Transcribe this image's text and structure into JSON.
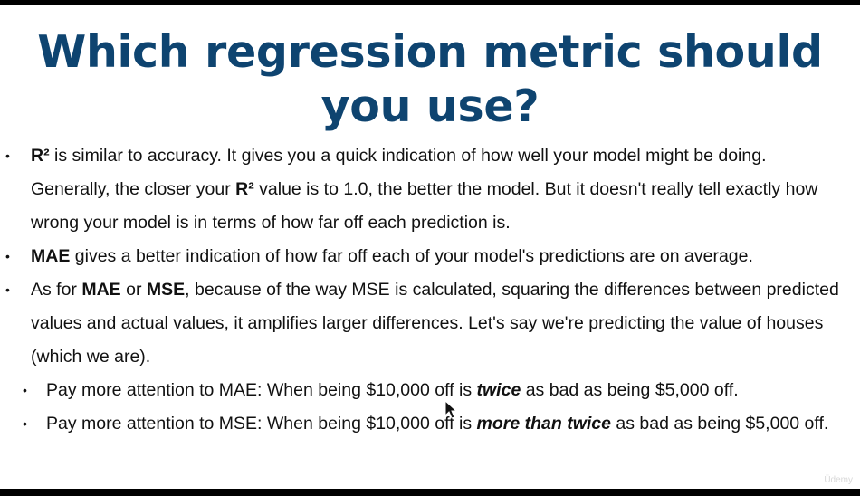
{
  "title": "Which regression metric should you use?",
  "bullets": [
    {
      "parts": [
        {
          "t": "R²",
          "b": true
        },
        {
          "t": " is similar to accuracy. It gives you a quick indication of how well your model might be doing. Generally, the closer your "
        },
        {
          "t": "R²",
          "b": true
        },
        {
          "t": " value is to 1.0, the better the model. But it doesn't really tell exactly how wrong your model is in terms of how far off each prediction is."
        }
      ]
    },
    {
      "parts": [
        {
          "t": "MAE",
          "b": true
        },
        {
          "t": " gives a better indication of how far off each of your model's predictions are on average."
        }
      ]
    },
    {
      "parts": [
        {
          "t": "As for "
        },
        {
          "t": "MAE",
          "b": true
        },
        {
          "t": " or "
        },
        {
          "t": "MSE",
          "b": true
        },
        {
          "t": ", because of the way MSE is calculated, squaring the differences between predicted values and actual values, it amplifies larger differences. Let's say we're predicting the value of houses (which we are)."
        }
      ]
    }
  ],
  "sub_bullets": [
    {
      "parts": [
        {
          "t": "Pay more attention to MAE: When being $10,000 off is "
        },
        {
          "t": "twice",
          "b": true,
          "i": true
        },
        {
          "t": " as bad as being $5,000 off."
        }
      ]
    },
    {
      "parts": [
        {
          "t": "Pay more attention to MSE: When being $10,000 off is "
        },
        {
          "t": "more than twice",
          "b": true,
          "i": true
        },
        {
          "t": " as bad as being $5,000 off."
        }
      ]
    }
  ],
  "bullet_glyph": "•",
  "watermark": "Üdemy",
  "colors": {
    "title": "#0e4470",
    "background": "#ffffff",
    "frame": "#000000"
  }
}
